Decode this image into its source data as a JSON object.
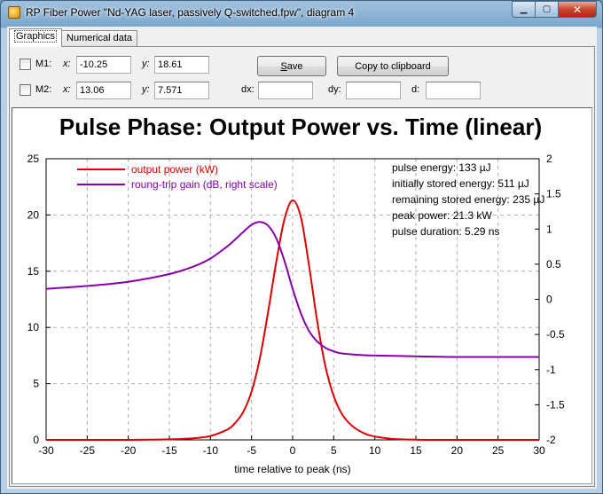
{
  "window": {
    "title": "RP Fiber Power \"Nd-YAG laser, passively Q-switched.fpw\", diagram 4",
    "minimize_glyph": "▁",
    "maximize_glyph": "▢",
    "close_glyph": "✕"
  },
  "tabs": [
    {
      "label": "Graphics",
      "active": true
    },
    {
      "label": "Numerical data",
      "active": false
    }
  ],
  "markers": {
    "m1": {
      "label": "M1:",
      "x_label": "x:",
      "x_value": "-10.25",
      "y_label": "y:",
      "y_value": "18.61"
    },
    "m2": {
      "label": "M2:",
      "x_label": "x:",
      "x_value": "13.06",
      "y_label": "y:",
      "y_value": "7.571"
    },
    "dx_label": "dx:",
    "dx_value": "",
    "dy_label": "dy:",
    "dy_value": "",
    "d_label": "d:",
    "d_value": ""
  },
  "buttons": {
    "save_first": "S",
    "save_rest": "ave",
    "copy": "Copy to clipboard"
  },
  "chart_data": {
    "type": "line",
    "title": "Pulse Phase: Output Power vs. Time (linear)",
    "xlabel": "time relative to peak (ns)",
    "ylabel": "",
    "y2label": "",
    "xlim": [
      -30,
      30
    ],
    "ylim": [
      0,
      25
    ],
    "y2lim": [
      -2,
      2
    ],
    "grid": true,
    "legend_placement": "top-left",
    "x_ticks": [
      "-30",
      "-25",
      "-20",
      "-15",
      "-10",
      "-5",
      "0",
      "5",
      "10",
      "15",
      "20",
      "25",
      "30"
    ],
    "y_ticks": [
      "0",
      "5",
      "10",
      "15",
      "20",
      "25"
    ],
    "y2_ticks": [
      "-2",
      "-1.5",
      "-1",
      "-0.5",
      "0",
      "0.5",
      "1",
      "1.5",
      "2"
    ],
    "series": [
      {
        "name": "output power (kW)",
        "axis": "left",
        "color": "#dd0000",
        "x": [
          -30,
          -20,
          -15,
          -12,
          -10,
          -8,
          -7,
          -6,
          -5,
          -4,
          -3,
          -2,
          -1,
          0,
          1,
          2,
          3,
          4,
          5,
          6,
          7,
          8,
          9,
          10,
          12,
          15,
          20,
          30
        ],
        "y": [
          0,
          0,
          0.05,
          0.15,
          0.35,
          0.9,
          1.5,
          2.5,
          4.3,
          7.2,
          11.3,
          15.8,
          19.6,
          21.3,
          19.8,
          15.5,
          10.5,
          6.5,
          3.9,
          2.3,
          1.4,
          0.85,
          0.5,
          0.3,
          0.1,
          0.02,
          0,
          0
        ]
      },
      {
        "name": "roung-trip gain (dB, right scale)",
        "axis": "right",
        "color": "#8800aa",
        "x": [
          -30,
          -25,
          -20,
          -15,
          -12,
          -10,
          -8,
          -7,
          -6,
          -5,
          -4,
          -3,
          -2,
          -1,
          0,
          1,
          2,
          3,
          4,
          5,
          6,
          8,
          10,
          15,
          20,
          30
        ],
        "y": [
          0.15,
          0.19,
          0.25,
          0.36,
          0.47,
          0.58,
          0.75,
          0.85,
          0.96,
          1.06,
          1.1,
          1.05,
          0.87,
          0.55,
          0.15,
          -0.2,
          -0.45,
          -0.6,
          -0.69,
          -0.74,
          -0.77,
          -0.79,
          -0.8,
          -0.81,
          -0.82,
          -0.82
        ]
      }
    ],
    "annotations": [
      "pulse energy: 133 µJ",
      "initially stored energy: 511 µJ",
      "remaining stored energy: 235 µJ",
      "peak power: 21.3 kW",
      "pulse duration: 5.29 ns"
    ]
  }
}
